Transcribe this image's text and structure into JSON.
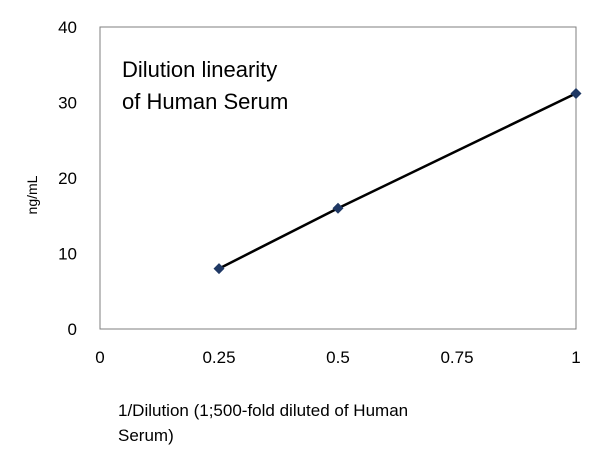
{
  "chart_data": {
    "type": "scatter",
    "title_lines": [
      "Dilution linearity",
      "of Human Serum"
    ],
    "xlabel_lines": [
      "1/Dilution (1;500-fold diluted of  Human",
      "Serum)"
    ],
    "ylabel": "ng/mL",
    "xlim": [
      0,
      1
    ],
    "ylim": [
      0,
      40
    ],
    "x_ticks": [
      0,
      0.25,
      0.5,
      0.75,
      1
    ],
    "x_tick_labels": [
      "0",
      "0.25",
      "0.5",
      "0.75",
      "1"
    ],
    "y_ticks": [
      0,
      10,
      20,
      30,
      40
    ],
    "y_tick_labels": [
      "0",
      "10",
      "20",
      "30",
      "40"
    ],
    "grid": false,
    "series": [
      {
        "x": [
          0.25,
          0.5,
          1
        ],
        "y": [
          8,
          16,
          31.2
        ],
        "color": "#1f3864",
        "line_color": "#000000",
        "marker": "diamond"
      }
    ]
  }
}
